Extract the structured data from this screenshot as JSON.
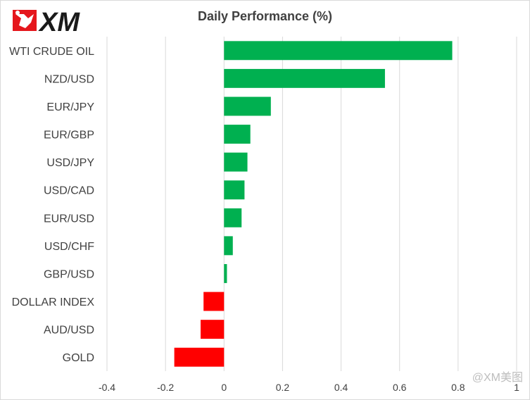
{
  "brand": {
    "logo_text": "XM",
    "colors": {
      "logo_red": "#e5161c",
      "logo_dark": "#1a1a1a"
    }
  },
  "watermark": "@XM美图",
  "colors": {
    "positive": "#00b050",
    "negative": "#ff0000",
    "grid": "#d9d9d9",
    "text": "#404040"
  },
  "chart_data": {
    "type": "bar",
    "orientation": "horizontal",
    "title": "Daily Performance  (%)",
    "xlabel": "",
    "ylabel": "",
    "categories": [
      "WTI CRUDE OIL",
      "NZD/USD",
      "EUR/JPY",
      "EUR/GBP",
      "USD/JPY",
      "USD/CAD",
      "EUR/USD",
      "USD/CHF",
      "GBP/USD",
      "DOLLAR INDEX",
      "AUD/USD",
      "GOLD"
    ],
    "values": [
      0.78,
      0.55,
      0.16,
      0.09,
      0.08,
      0.07,
      0.06,
      0.03,
      0.01,
      -0.07,
      -0.08,
      -0.17
    ],
    "xlim": [
      -0.4,
      1
    ],
    "xticks": [
      -0.4,
      -0.2,
      0,
      0.2,
      0.4,
      0.6,
      0.8,
      1
    ],
    "xtick_labels": [
      "-0.4",
      "-0.2",
      "0",
      "0.2",
      "0.4",
      "0.6",
      "0.8",
      "1"
    ],
    "grid": true,
    "legend": "none"
  }
}
